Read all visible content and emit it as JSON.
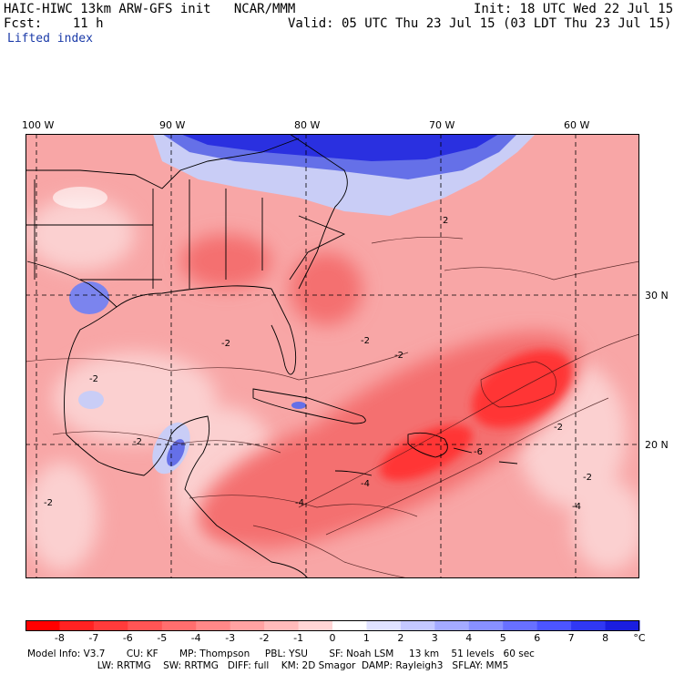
{
  "header": {
    "line1_left": "HAIC-HIWC 13km ARW-GFS init   NCAR/MMM",
    "line1_right": "Init: 18 UTC Wed 22 Jul 15",
    "line2_left": "Fcst:    11 h",
    "line2_right": "Valid: 05 UTC Thu 23 Jul 15 (03 LDT Thu 23 Jul 15)",
    "field_name": "Lifted index"
  },
  "map": {
    "lon_labels": [
      "100 W",
      "90 W",
      "80 W",
      "70 W",
      "60 W"
    ],
    "lat_labels": [
      "30 N",
      "20 N"
    ],
    "contour_labels": [
      "2",
      "-2",
      "-2",
      "-2",
      "-2",
      "-2",
      "-2",
      "-2",
      "-4",
      "-4",
      "-6",
      "-4",
      "-2"
    ],
    "colors": {
      "strong_neg": "#ff2020",
      "neg": "#f57a7a",
      "weak_neg": "#fbc3c3",
      "near_zero": "#ffffff",
      "pos": "#6a78ee",
      "strong_pos": "#1a1ee0"
    }
  },
  "colorbar": {
    "ticks": [
      "-8",
      "-7",
      "-6",
      "-5",
      "-4",
      "-3",
      "-2",
      "-1",
      "0",
      "1",
      "2",
      "3",
      "4",
      "5",
      "6",
      "7",
      "8"
    ],
    "unit": "°C",
    "colors": [
      "#ff0000",
      "#ff2222",
      "#ff3b3b",
      "#ff5555",
      "#ff6e6e",
      "#ff8888",
      "#ffa2a2",
      "#ffbbbb",
      "#ffd5d5",
      "#ffffff",
      "#e0e2ff",
      "#c4c8ff",
      "#a4aaff",
      "#8890ff",
      "#6870ff",
      "#4c55ff",
      "#3038f4",
      "#1a1ee0"
    ]
  },
  "model_info": {
    "line1": "Model Info: V3.7       CU: KF       MP: Thompson     PBL: YSU       SF: Noah LSM     13 km    51 levels   60 sec",
    "line2": "                       LW: RRTMG    SW: RRTMG   DIFF: full    KM: 2D Smagor  DAMP: Rayleigh3   SFLAY: MM5"
  }
}
